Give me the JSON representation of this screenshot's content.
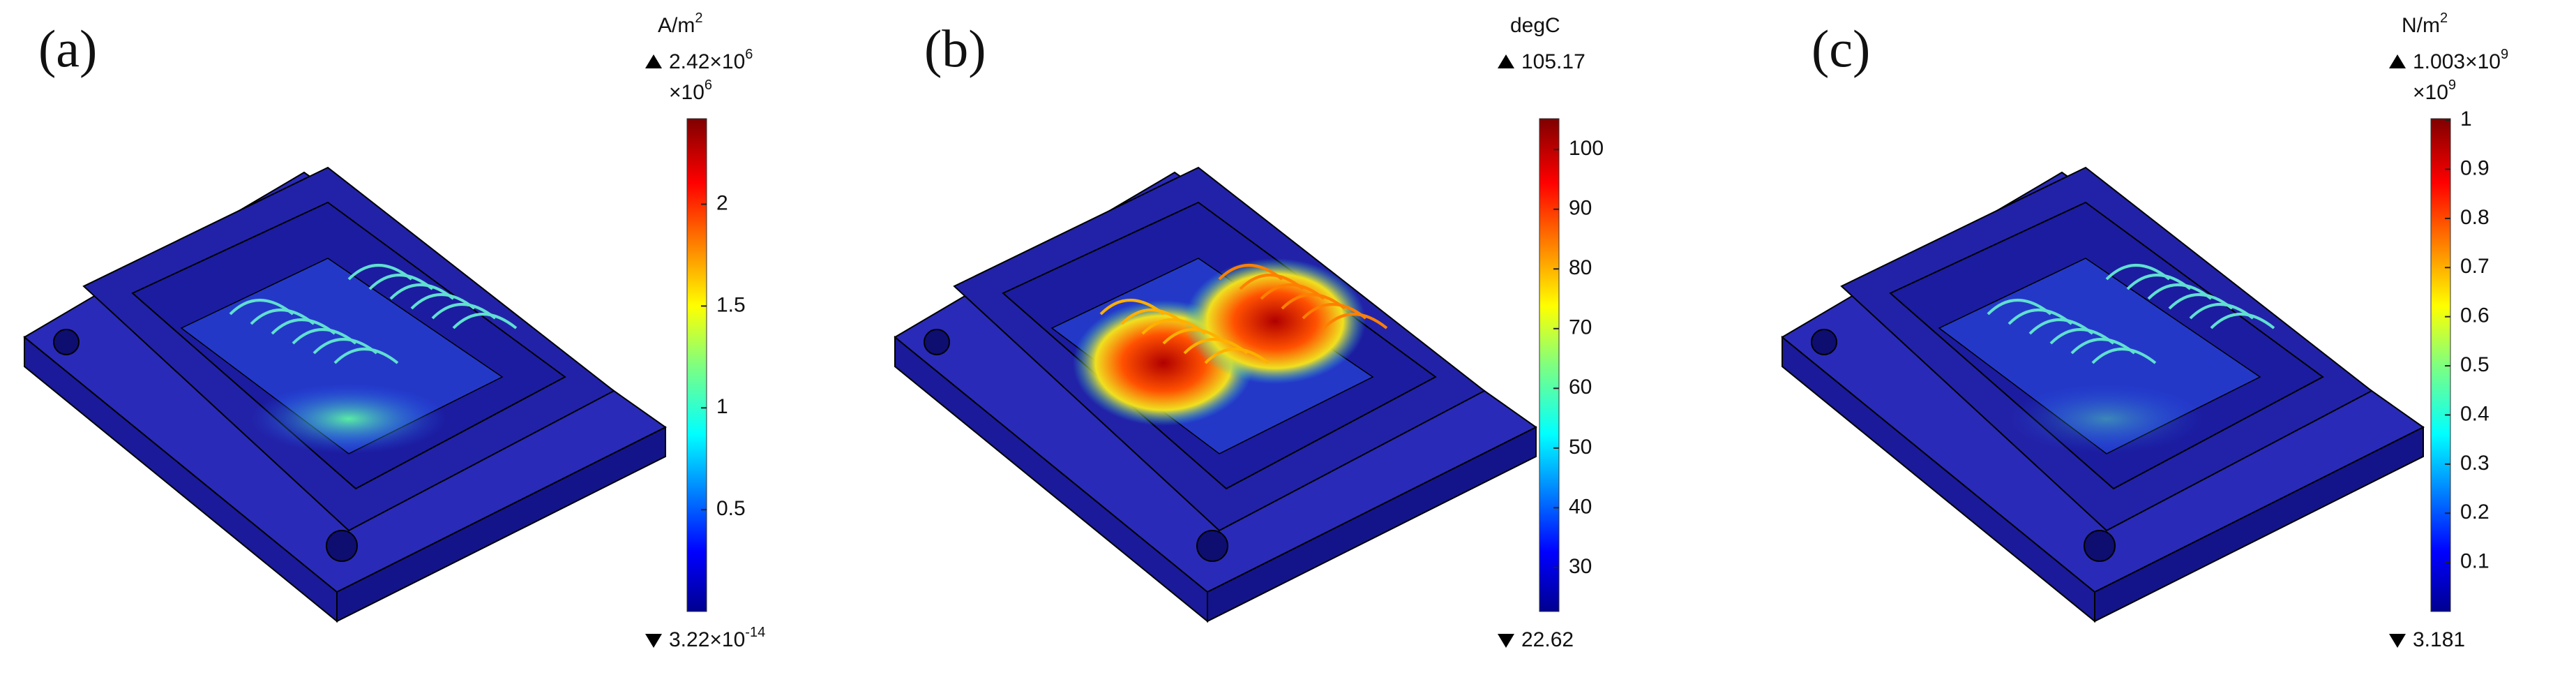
{
  "panels": [
    {
      "label": "(a)",
      "unit": "A/m",
      "unit_exp": "2",
      "max_label": "2.42×10",
      "max_exp": "6",
      "multiplier": "×10",
      "multiplier_exp": "6",
      "min_label": "3.22×10",
      "min_exp": "-14",
      "min": 3.22e-20,
      "max": 2.42,
      "ticks": [
        0.5,
        1,
        1.5,
        2
      ]
    },
    {
      "label": "(b)",
      "unit": "degC",
      "max_label": "105.17",
      "min_label": "22.62",
      "min": 22.62,
      "max": 105.17,
      "ticks": [
        30,
        40,
        50,
        60,
        70,
        80,
        90,
        100
      ]
    },
    {
      "label": "(c)",
      "unit": "N/m",
      "unit_exp": "2",
      "max_label": "1.003×10",
      "max_exp": "9",
      "multiplier": "×10",
      "multiplier_exp": "9",
      "min_label": "3.181",
      "min": 3.181e-09,
      "max": 1.003,
      "ticks": [
        0.1,
        0.2,
        0.3,
        0.4,
        0.5,
        0.6,
        0.7,
        0.8,
        0.9,
        1
      ]
    }
  ]
}
